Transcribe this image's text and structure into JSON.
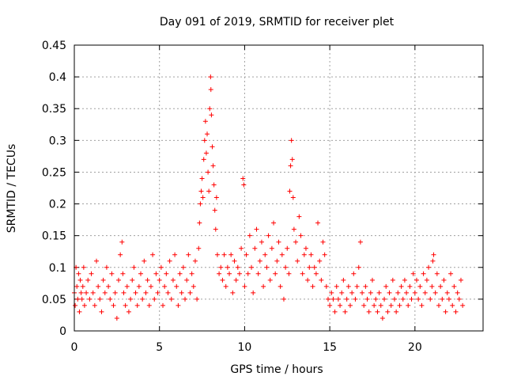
{
  "chart_data": {
    "type": "scatter",
    "title": "Day 091 of 2019, SRMTID for receiver plet",
    "xlabel": "GPS time / hours",
    "ylabel": "SRMTID / TECUs",
    "xlim": [
      0,
      24
    ],
    "ylim": [
      0,
      0.45
    ],
    "xticks": [
      0,
      5,
      10,
      15,
      20
    ],
    "yticks": [
      0,
      0.05,
      0.1,
      0.15,
      0.2,
      0.25,
      0.3,
      0.35,
      0.4,
      0.45
    ],
    "xtick_labels": [
      "0",
      "5",
      "10",
      "15",
      "20"
    ],
    "ytick_labels": [
      "0",
      "0.05",
      "0.1",
      "0.15",
      "0.2",
      "0.25",
      "0.3",
      "0.35",
      "0.4",
      "0.45"
    ],
    "grid": true,
    "marker": "+",
    "color": "#ff0000",
    "series": [
      {
        "name": "SRMTID",
        "points": [
          [
            0.0,
            0.06
          ],
          [
            0.05,
            0.04
          ],
          [
            0.1,
            0.1
          ],
          [
            0.15,
            0.07
          ],
          [
            0.2,
            0.05
          ],
          [
            0.25,
            0.09
          ],
          [
            0.3,
            0.03
          ],
          [
            0.35,
            0.08
          ],
          [
            0.4,
            0.06
          ],
          [
            0.45,
            0.05
          ],
          [
            0.5,
            0.07
          ],
          [
            0.55,
            0.1
          ],
          [
            0.6,
            0.04
          ],
          [
            0.7,
            0.06
          ],
          [
            0.8,
            0.08
          ],
          [
            0.9,
            0.05
          ],
          [
            1.0,
            0.09
          ],
          [
            1.1,
            0.06
          ],
          [
            1.2,
            0.04
          ],
          [
            1.3,
            0.11
          ],
          [
            1.4,
            0.07
          ],
          [
            1.5,
            0.05
          ],
          [
            1.6,
            0.03
          ],
          [
            1.7,
            0.08
          ],
          [
            1.8,
            0.06
          ],
          [
            1.9,
            0.1
          ],
          [
            2.0,
            0.07
          ],
          [
            2.1,
            0.05
          ],
          [
            2.2,
            0.09
          ],
          [
            2.3,
            0.04
          ],
          [
            2.4,
            0.06
          ],
          [
            2.5,
            0.02
          ],
          [
            2.6,
            0.08
          ],
          [
            2.7,
            0.12
          ],
          [
            2.8,
            0.14
          ],
          [
            2.85,
            0.09
          ],
          [
            2.9,
            0.06
          ],
          [
            3.0,
            0.04
          ],
          [
            3.1,
            0.07
          ],
          [
            3.2,
            0.03
          ],
          [
            3.3,
            0.05
          ],
          [
            3.4,
            0.08
          ],
          [
            3.5,
            0.1
          ],
          [
            3.6,
            0.06
          ],
          [
            3.7,
            0.04
          ],
          [
            3.8,
            0.07
          ],
          [
            3.9,
            0.09
          ],
          [
            4.0,
            0.05
          ],
          [
            4.1,
            0.11
          ],
          [
            4.2,
            0.06
          ],
          [
            4.3,
            0.08
          ],
          [
            4.4,
            0.04
          ],
          [
            4.5,
            0.07
          ],
          [
            4.6,
            0.12
          ],
          [
            4.7,
            0.05
          ],
          [
            4.8,
            0.09
          ],
          [
            4.9,
            0.06
          ],
          [
            5.0,
            0.08
          ],
          [
            5.1,
            0.1
          ],
          [
            5.2,
            0.04
          ],
          [
            5.3,
            0.07
          ],
          [
            5.4,
            0.09
          ],
          [
            5.5,
            0.06
          ],
          [
            5.6,
            0.11
          ],
          [
            5.7,
            0.05
          ],
          [
            5.8,
            0.08
          ],
          [
            5.9,
            0.12
          ],
          [
            6.0,
            0.07
          ],
          [
            6.1,
            0.04
          ],
          [
            6.2,
            0.09
          ],
          [
            6.3,
            0.06
          ],
          [
            6.4,
            0.1
          ],
          [
            6.5,
            0.05
          ],
          [
            6.6,
            0.08
          ],
          [
            6.7,
            0.12
          ],
          [
            6.8,
            0.06
          ],
          [
            6.9,
            0.09
          ],
          [
            7.0,
            0.07
          ],
          [
            7.1,
            0.11
          ],
          [
            7.2,
            0.05
          ],
          [
            7.3,
            0.13
          ],
          [
            7.35,
            0.17
          ],
          [
            7.4,
            0.2
          ],
          [
            7.45,
            0.22
          ],
          [
            7.5,
            0.24
          ],
          [
            7.55,
            0.21
          ],
          [
            7.6,
            0.27
          ],
          [
            7.65,
            0.3
          ],
          [
            7.7,
            0.33
          ],
          [
            7.75,
            0.28
          ],
          [
            7.8,
            0.31
          ],
          [
            7.85,
            0.25
          ],
          [
            7.9,
            0.22
          ],
          [
            7.95,
            0.35
          ],
          [
            8.0,
            0.4
          ],
          [
            8.02,
            0.38
          ],
          [
            8.05,
            0.34
          ],
          [
            8.1,
            0.29
          ],
          [
            8.15,
            0.26
          ],
          [
            8.2,
            0.23
          ],
          [
            8.25,
            0.19
          ],
          [
            8.3,
            0.16
          ],
          [
            8.35,
            0.21
          ],
          [
            8.4,
            0.12
          ],
          [
            8.5,
            0.09
          ],
          [
            8.6,
            0.1
          ],
          [
            8.7,
            0.08
          ],
          [
            8.8,
            0.12
          ],
          [
            8.9,
            0.07
          ],
          [
            9.0,
            0.1
          ],
          [
            9.1,
            0.09
          ],
          [
            9.2,
            0.12
          ],
          [
            9.3,
            0.06
          ],
          [
            9.4,
            0.11
          ],
          [
            9.5,
            0.08
          ],
          [
            9.6,
            0.1
          ],
          [
            9.7,
            0.09
          ],
          [
            9.8,
            0.13
          ],
          [
            9.9,
            0.24
          ],
          [
            9.95,
            0.23
          ],
          [
            10.0,
            0.07
          ],
          [
            10.1,
            0.12
          ],
          [
            10.2,
            0.09
          ],
          [
            10.3,
            0.15
          ],
          [
            10.4,
            0.1
          ],
          [
            10.5,
            0.06
          ],
          [
            10.6,
            0.13
          ],
          [
            10.7,
            0.16
          ],
          [
            10.8,
            0.09
          ],
          [
            10.9,
            0.11
          ],
          [
            11.0,
            0.14
          ],
          [
            11.1,
            0.07
          ],
          [
            11.2,
            0.12
          ],
          [
            11.3,
            0.1
          ],
          [
            11.4,
            0.15
          ],
          [
            11.5,
            0.08
          ],
          [
            11.6,
            0.13
          ],
          [
            11.7,
            0.17
          ],
          [
            11.8,
            0.09
          ],
          [
            11.9,
            0.11
          ],
          [
            12.0,
            0.14
          ],
          [
            12.1,
            0.07
          ],
          [
            12.2,
            0.12
          ],
          [
            12.3,
            0.05
          ],
          [
            12.4,
            0.1
          ],
          [
            12.5,
            0.13
          ],
          [
            12.6,
            0.09
          ],
          [
            12.65,
            0.22
          ],
          [
            12.7,
            0.26
          ],
          [
            12.75,
            0.3
          ],
          [
            12.8,
            0.27
          ],
          [
            12.85,
            0.21
          ],
          [
            12.9,
            0.16
          ],
          [
            13.0,
            0.14
          ],
          [
            13.1,
            0.11
          ],
          [
            13.2,
            0.18
          ],
          [
            13.3,
            0.15
          ],
          [
            13.4,
            0.09
          ],
          [
            13.5,
            0.12
          ],
          [
            13.6,
            0.13
          ],
          [
            13.7,
            0.08
          ],
          [
            13.8,
            0.1
          ],
          [
            13.9,
            0.12
          ],
          [
            14.0,
            0.07
          ],
          [
            14.1,
            0.1
          ],
          [
            14.2,
            0.09
          ],
          [
            14.3,
            0.17
          ],
          [
            14.4,
            0.11
          ],
          [
            14.5,
            0.08
          ],
          [
            14.6,
            0.14
          ],
          [
            14.7,
            0.12
          ],
          [
            14.8,
            0.07
          ],
          [
            14.9,
            0.05
          ],
          [
            15.0,
            0.04
          ],
          [
            15.1,
            0.06
          ],
          [
            15.2,
            0.05
          ],
          [
            15.3,
            0.03
          ],
          [
            15.4,
            0.07
          ],
          [
            15.5,
            0.05
          ],
          [
            15.6,
            0.04
          ],
          [
            15.7,
            0.06
          ],
          [
            15.8,
            0.08
          ],
          [
            15.9,
            0.03
          ],
          [
            16.0,
            0.05
          ],
          [
            16.1,
            0.07
          ],
          [
            16.2,
            0.04
          ],
          [
            16.3,
            0.06
          ],
          [
            16.4,
            0.09
          ],
          [
            16.5,
            0.05
          ],
          [
            16.6,
            0.07
          ],
          [
            16.7,
            0.1
          ],
          [
            16.8,
            0.14
          ],
          [
            16.9,
            0.06
          ],
          [
            17.0,
            0.04
          ],
          [
            17.1,
            0.07
          ],
          [
            17.2,
            0.05
          ],
          [
            17.3,
            0.03
          ],
          [
            17.4,
            0.06
          ],
          [
            17.5,
            0.08
          ],
          [
            17.6,
            0.04
          ],
          [
            17.7,
            0.05
          ],
          [
            17.8,
            0.03
          ],
          [
            17.9,
            0.06
          ],
          [
            18.0,
            0.04
          ],
          [
            18.1,
            0.02
          ],
          [
            18.2,
            0.05
          ],
          [
            18.3,
            0.07
          ],
          [
            18.4,
            0.03
          ],
          [
            18.5,
            0.06
          ],
          [
            18.6,
            0.04
          ],
          [
            18.7,
            0.08
          ],
          [
            18.8,
            0.05
          ],
          [
            18.9,
            0.03
          ],
          [
            19.0,
            0.06
          ],
          [
            19.1,
            0.04
          ],
          [
            19.2,
            0.07
          ],
          [
            19.3,
            0.05
          ],
          [
            19.4,
            0.08
          ],
          [
            19.5,
            0.06
          ],
          [
            19.6,
            0.04
          ],
          [
            19.7,
            0.07
          ],
          [
            19.8,
            0.05
          ],
          [
            19.9,
            0.09
          ],
          [
            20.0,
            0.06
          ],
          [
            20.1,
            0.08
          ],
          [
            20.2,
            0.05
          ],
          [
            20.3,
            0.07
          ],
          [
            20.4,
            0.04
          ],
          [
            20.5,
            0.09
          ],
          [
            20.6,
            0.06
          ],
          [
            20.7,
            0.08
          ],
          [
            20.8,
            0.1
          ],
          [
            20.9,
            0.05
          ],
          [
            21.0,
            0.07
          ],
          [
            21.05,
            0.11
          ],
          [
            21.1,
            0.12
          ],
          [
            21.2,
            0.06
          ],
          [
            21.3,
            0.09
          ],
          [
            21.4,
            0.04
          ],
          [
            21.5,
            0.07
          ],
          [
            21.6,
            0.05
          ],
          [
            21.7,
            0.08
          ],
          [
            21.8,
            0.03
          ],
          [
            21.9,
            0.06
          ],
          [
            22.0,
            0.05
          ],
          [
            22.1,
            0.09
          ],
          [
            22.2,
            0.04
          ],
          [
            22.3,
            0.07
          ],
          [
            22.4,
            0.03
          ],
          [
            22.5,
            0.06
          ],
          [
            22.6,
            0.05
          ],
          [
            22.7,
            0.08
          ],
          [
            22.8,
            0.04
          ]
        ]
      }
    ]
  }
}
